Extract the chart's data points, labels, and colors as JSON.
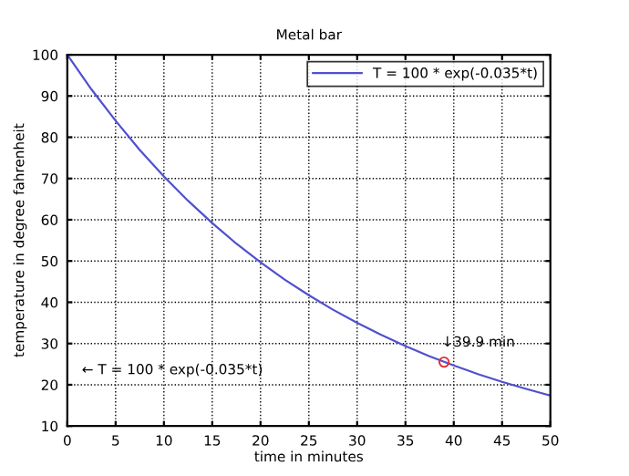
{
  "chart_data": {
    "type": "line",
    "title": "Metal bar",
    "xlabel": "time in minutes",
    "ylabel": "temperature in degree fahrenheit",
    "xlim": [
      0,
      50
    ],
    "ylim": [
      10,
      100
    ],
    "xticks": [
      0,
      5,
      10,
      15,
      20,
      25,
      30,
      35,
      40,
      45,
      50
    ],
    "yticks": [
      10,
      20,
      30,
      40,
      50,
      60,
      70,
      80,
      90,
      100
    ],
    "grid": true,
    "legend": "top right",
    "series": [
      {
        "name": "T = 100 * exp(-0.035*t)",
        "color": "#5050d0",
        "marker": "none",
        "x": [
          0,
          2.5,
          5,
          7.5,
          10,
          12.5,
          15,
          17.5,
          20,
          22.5,
          25,
          27.5,
          30,
          32.5,
          35,
          37.5,
          40,
          42.5,
          45,
          47.5,
          50
        ],
        "values": [
          100,
          91.6,
          84.0,
          76.9,
          70.5,
          64.6,
          59.2,
          54.2,
          49.7,
          45.5,
          41.7,
          38.2,
          35.0,
          32.1,
          29.4,
          26.9,
          24.7,
          22.6,
          20.7,
          19.0,
          17.4
        ]
      },
      {
        "type": "scatter",
        "color": "#e03030",
        "marker": "circle",
        "x": [
          39
        ],
        "values": [
          25.5
        ]
      }
    ],
    "annotations": [
      {
        "text": "↓39.9 min",
        "x": 39,
        "y": 25.5
      },
      "← T = 100 * exp(-0.035*t)"
    ]
  }
}
